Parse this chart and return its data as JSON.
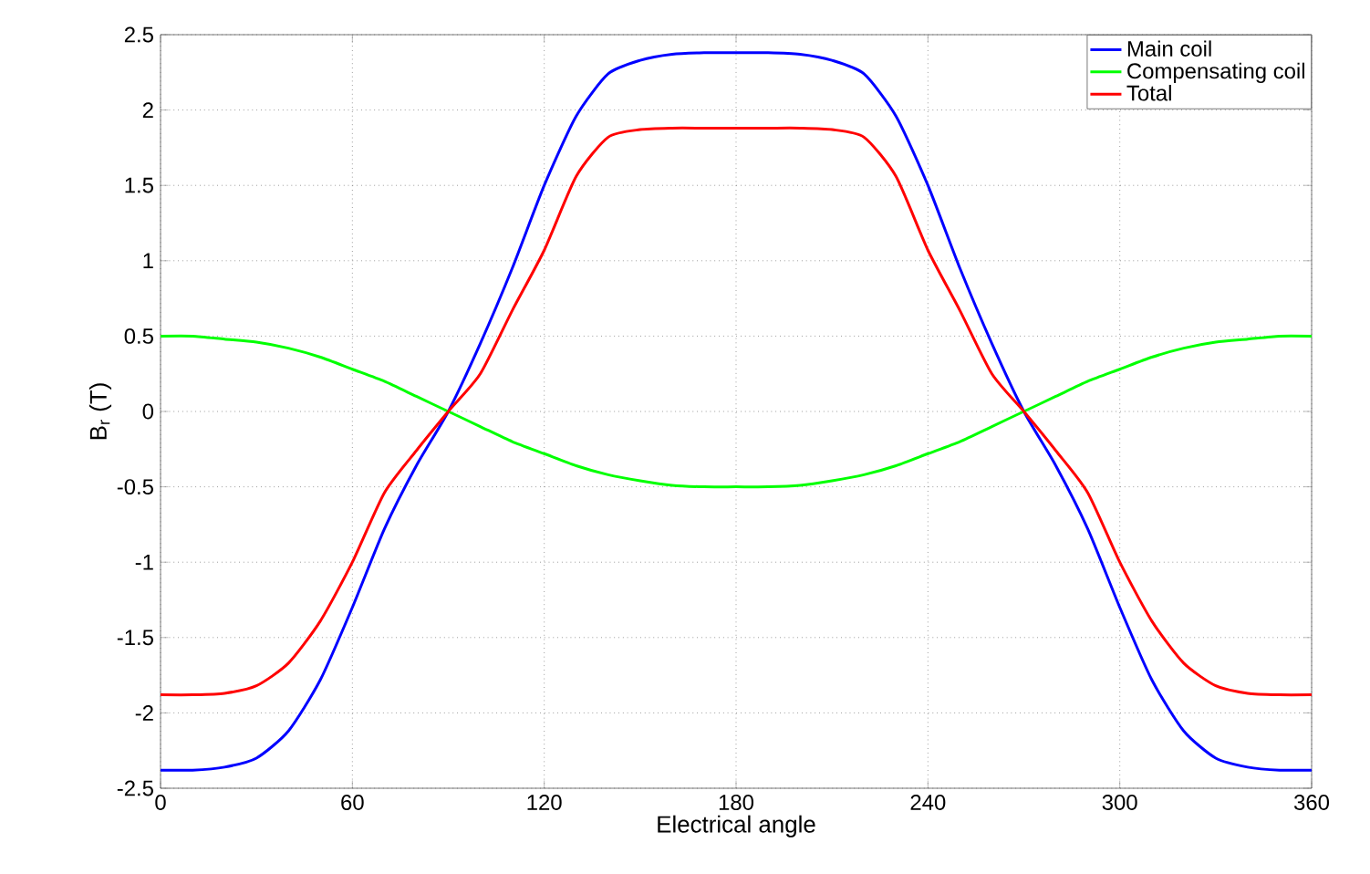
{
  "chart_data": {
    "type": "line",
    "xlabel": "Electrical angle",
    "ylabel": "B$_{r}$ (T)",
    "x": [
      0,
      10,
      20,
      30,
      40,
      50,
      60,
      70,
      80,
      90,
      100,
      110,
      120,
      130,
      140,
      150,
      160,
      170,
      180,
      190,
      200,
      210,
      220,
      230,
      240,
      250,
      260,
      270,
      280,
      290,
      300,
      310,
      320,
      330,
      340,
      350,
      360
    ],
    "series": [
      {
        "name": "Main coil",
        "color": "#0000ff",
        "values": [
          -2.38,
          -2.38,
          -2.36,
          -2.3,
          -2.12,
          -1.78,
          -1.3,
          -0.78,
          -0.36,
          0,
          0.45,
          0.95,
          1.5,
          1.96,
          2.24,
          2.33,
          2.37,
          2.38,
          2.38,
          2.38,
          2.37,
          2.33,
          2.24,
          1.96,
          1.5,
          0.95,
          0.45,
          0,
          -0.36,
          -0.78,
          -1.3,
          -1.78,
          -2.12,
          -2.3,
          -2.36,
          -2.38,
          -2.38
        ]
      },
      {
        "name": "Compensating coil",
        "color": "#00ff00",
        "values": [
          0.5,
          0.5,
          0.48,
          0.46,
          0.42,
          0.36,
          0.28,
          0.2,
          0.1,
          0,
          -0.1,
          -0.2,
          -0.28,
          -0.36,
          -0.42,
          -0.46,
          -0.49,
          -0.5,
          -0.5,
          -0.5,
          -0.49,
          -0.46,
          -0.42,
          -0.36,
          -0.28,
          -0.2,
          -0.1,
          0,
          0.1,
          0.2,
          0.28,
          0.36,
          0.42,
          0.46,
          0.48,
          0.5,
          0.5
        ]
      },
      {
        "name": "Total",
        "color": "#ff0000",
        "values": [
          -1.88,
          -1.88,
          -1.87,
          -1.82,
          -1.67,
          -1.39,
          -1.0,
          -0.54,
          -0.26,
          0,
          0.25,
          0.67,
          1.07,
          1.56,
          1.82,
          1.87,
          1.88,
          1.88,
          1.88,
          1.88,
          1.88,
          1.87,
          1.82,
          1.56,
          1.07,
          0.67,
          0.25,
          0,
          -0.26,
          -0.54,
          -1.0,
          -1.39,
          -1.67,
          -1.82,
          -1.87,
          -1.88,
          -1.88
        ]
      }
    ],
    "xlim": [
      0,
      360
    ],
    "xticks": [
      0,
      60,
      120,
      180,
      240,
      300,
      360
    ],
    "ylim": [
      -2.5,
      2.5
    ],
    "yticks": [
      -2.5,
      -2,
      -1.5,
      -1,
      -0.5,
      0,
      0.5,
      1,
      1.5,
      2,
      2.5
    ],
    "grid": true,
    "legend": "top right",
    "marker": "none",
    "line_style": "solid"
  }
}
